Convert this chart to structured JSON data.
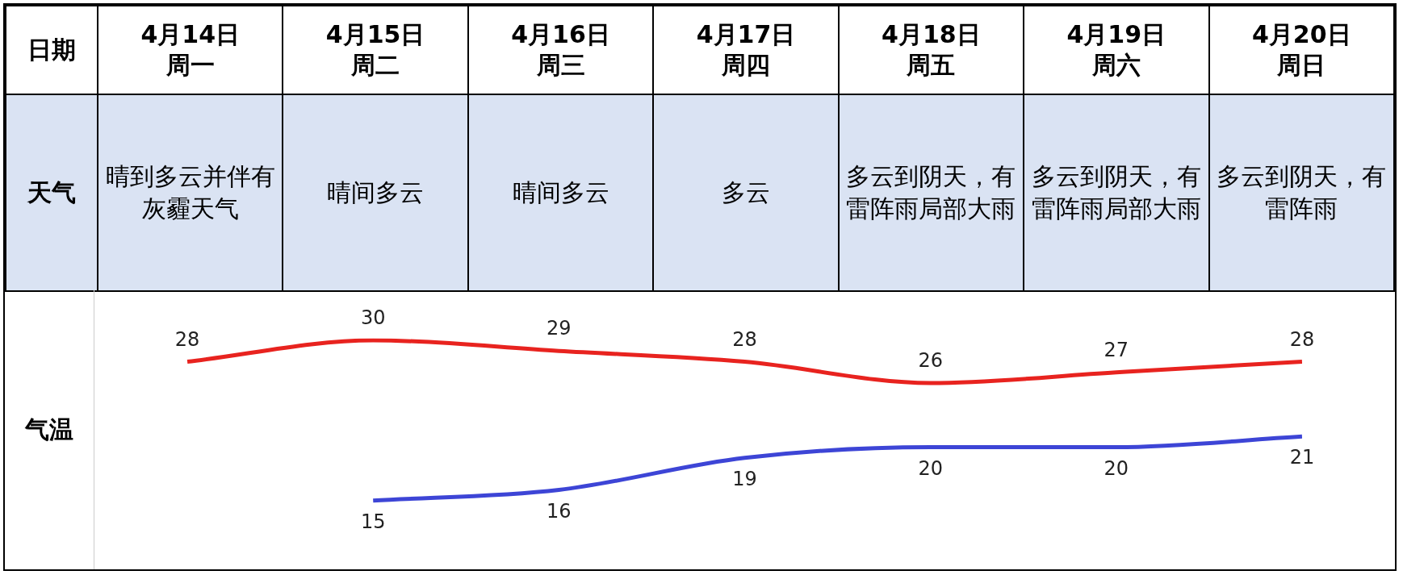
{
  "chart_data": {
    "type": "line",
    "xlabel": "日期",
    "ylabel": "气温",
    "categories": [
      "4月14日周一",
      "4月15日周二",
      "4月16日周三",
      "4月17日周四",
      "4月18日周五",
      "4月19日周六",
      "4月20日周日"
    ],
    "annotations": [
      "天气",
      "晴到多云并伴有灰霾天气",
      "晴间多云",
      "晴间多云",
      "多云",
      "多云到阴天，有雷阵雨局部大雨",
      "多云到阴天，有雷阵雨局部大雨",
      "多云到阴天，有雷阵雨"
    ],
    "series": [
      {
        "color": "#e8231f",
        "values": [
          28,
          30,
          29,
          28,
          26,
          27,
          28
        ]
      },
      {
        "color": "#3d45d6",
        "values": [
          null,
          15,
          16,
          19,
          20,
          20,
          21
        ]
      }
    ],
    "data_labels": true,
    "legend": false
  }
}
